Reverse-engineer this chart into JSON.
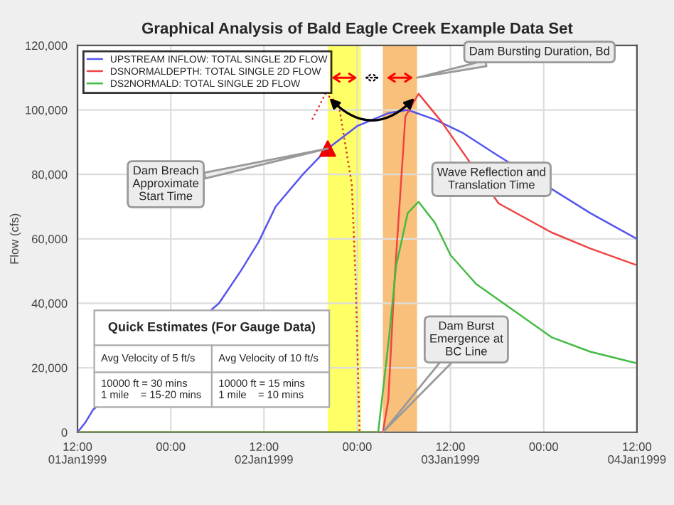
{
  "chart_data": {
    "type": "line",
    "title": "Graphical Analysis of Bald Eagle Creek Example Data Set",
    "ylabel": "Flow (cfs)",
    "xlim": [
      "1999-01-01T12:00",
      "1999-01-04T12:00"
    ],
    "xticks": [
      {
        "value": "1999-01-01T12:00",
        "label": "12:00\n01Jan1999"
      },
      {
        "value": "1999-01-02T00:00",
        "label": "00:00"
      },
      {
        "value": "1999-01-02T12:00",
        "label": "12:00\n02Jan1999"
      },
      {
        "value": "1999-01-03T00:00",
        "label": "00:00"
      },
      {
        "value": "1999-01-03T12:00",
        "label": "12:00\n03Jan1999"
      },
      {
        "value": "1999-01-04T00:00",
        "label": "00:00"
      },
      {
        "value": "1999-01-04T12:00",
        "label": "12:00\n04Jan1999"
      }
    ],
    "ylim": [
      0,
      120000
    ],
    "yticks": [
      0,
      {
        "value": 20000,
        "label": "20,000"
      },
      {
        "value": 40000,
        "label": "40,000"
      },
      {
        "value": 60000,
        "label": "60,000"
      },
      {
        "value": 80000,
        "label": "80,000"
      },
      {
        "value": 100000,
        "label": "100,000"
      },
      {
        "value": 120000,
        "label": "120,000"
      }
    ],
    "grid": true,
    "legend": "top left",
    "series": [
      {
        "name": "UPSTREAM INFLOW: TOTAL SINGLE 2D FLOW",
        "color": "#5555ee",
        "x": [
          "1999-01-01T12:00",
          "1999-01-01T13:00",
          "1999-01-01T14:00",
          "1999-01-02T06:12",
          "1999-01-02T09:00",
          "1999-01-02T11:18",
          "1999-01-02T13:30",
          "1999-01-02T17:00",
          "1999-01-02T20:12",
          "1999-01-03T00:00",
          "1999-01-03T04:00",
          "1999-01-03T06:30",
          "1999-01-03T10:00",
          "1999-01-03T13:30",
          "1999-01-03T18:00",
          "1999-01-04T06:00",
          "1999-01-04T12:00"
        ],
        "values": [
          0,
          3000,
          7000,
          40000,
          50000,
          59000,
          70000,
          80000,
          88000,
          95000,
          99000,
          100000,
          97000,
          93000,
          86000,
          68000,
          60000
        ]
      },
      {
        "name": "DSNORMALDEPTH: TOTAL SINGLE 2D FLOW",
        "color": "#ee4444",
        "x": [
          "1999-01-01T12:00",
          "1999-01-03T03:18",
          "1999-01-03T04:00",
          "1999-01-03T04:48",
          "1999-01-03T06:12",
          "1999-01-03T07:54",
          "1999-01-03T10:48",
          "1999-01-03T18:12",
          "1999-01-04T01:00",
          "1999-01-04T06:00",
          "1999-01-04T11:48"
        ],
        "values": [
          0,
          0,
          10000,
          47000,
          98000,
          105000,
          96500,
          71000,
          62000,
          57000,
          52000
        ]
      },
      {
        "name": "DS2NORMALD: TOTAL SINGLE 2D FLOW",
        "color": "#44bb44",
        "x": [
          "1999-01-01T12:00",
          "1999-01-03T02:42",
          "1999-01-03T04:06",
          "1999-01-03T05:00",
          "1999-01-03T06:30",
          "1999-01-03T07:54",
          "1999-01-03T10:00",
          "1999-01-03T12:00",
          "1999-01-03T15:18",
          "1999-01-04T01:00",
          "1999-01-04T06:00",
          "1999-01-04T11:48"
        ],
        "values": [
          0,
          0,
          29500,
          51500,
          68000,
          71500,
          65000,
          55000,
          46000,
          29500,
          25000,
          21500
        ]
      },
      {
        "color": "#e03030",
        "line_style": "dotted",
        "x": [
          "1999-01-02T18:12",
          "1999-01-02T19:54",
          "1999-01-02T21:36",
          "1999-01-02T23:18",
          "1999-01-02T23:48",
          "1999-01-03T00:18"
        ],
        "values": [
          97000,
          105000,
          102000,
          77000,
          47000,
          0
        ]
      },
      {
        "type": "scatter",
        "marker": "triangle",
        "color": "#ee0000",
        "x": [
          "1999-01-02T20:12"
        ],
        "values": [
          88000
        ]
      }
    ],
    "bands": [
      {
        "axis": "x",
        "from": "1999-01-02T20:12",
        "to": "1999-01-03T00:30",
        "color": "#ffff66"
      },
      {
        "axis": "x",
        "from": "1999-01-03T03:18",
        "to": "1999-01-03T07:42",
        "color": "#f8c07a"
      }
    ],
    "annotations": [
      {
        "text": "Dam Breach\nApproximate\nStart Time",
        "x": "1999-01-02T20:12",
        "y": 88000
      },
      {
        "text": "Dam Bursting Duration, Bd",
        "x": "1999-01-03T07:42",
        "y": 110000
      },
      "Wave Reflection and\nTranslation Time",
      "Dam Burst\nEmergence at\nBC Line",
      "Quick Estimates (For Gauge Data)",
      "Avg Velocity of 5 ft/s",
      "Avg Velocity of 10 ft/s",
      "10000 ft = 30 mins\n1 mile    = 15-20 mins",
      "10000 ft = 15 mins\n1 mile    = 10 mins"
    ]
  }
}
